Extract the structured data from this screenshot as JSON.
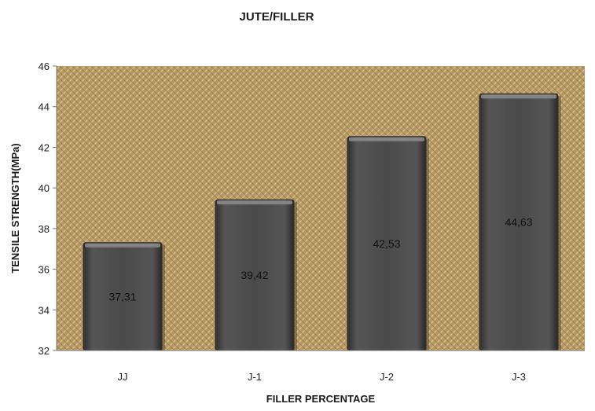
{
  "chart_data": {
    "type": "bar",
    "title": "JUTE/FILLER",
    "xlabel": "FILLER  PERCENTAGE",
    "ylabel": "TENSILE STRENGTH(MPa)",
    "categories": [
      "JJ",
      "J-1",
      "J-2",
      "J-3"
    ],
    "values": [
      37.31,
      39.42,
      42.53,
      44.63
    ],
    "data_labels": [
      "37,31",
      "39,42",
      "42,53",
      "44,63"
    ],
    "ylim": [
      32,
      46
    ],
    "yticks": [
      32,
      34,
      36,
      38,
      40,
      42,
      44,
      46
    ],
    "grid": false,
    "legend": "none",
    "colors": {
      "bar": "#4a4a4a",
      "bar_highlight": "#8a8a8a",
      "plot_background": "#b89a62",
      "weave_dark": "#7d6440",
      "weave_light": "#d8c08e"
    }
  }
}
